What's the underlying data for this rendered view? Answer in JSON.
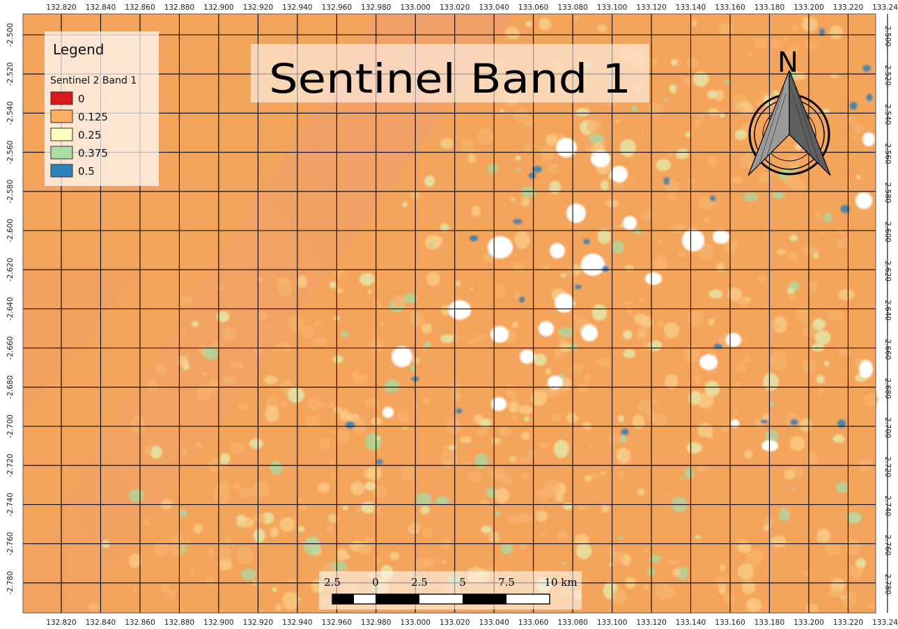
{
  "title": "Sentinel Band 1",
  "legend": {
    "heading": "Legend",
    "layer_name": "Sentinel 2 Band 1",
    "items": [
      {
        "label": "0",
        "color": "#d7191c"
      },
      {
        "label": "0.125",
        "color": "#fdae61"
      },
      {
        "label": "0.25",
        "color": "#ffffbf"
      },
      {
        "label": "0.375",
        "color": "#abdda4"
      },
      {
        "label": "0.5",
        "color": "#2b83ba"
      }
    ]
  },
  "grid": {
    "x_labels": [
      "132.820",
      "132.840",
      "132.860",
      "132.880",
      "132.900",
      "132.920",
      "132.940",
      "132.960",
      "132.980",
      "133.000",
      "133.020",
      "133.040",
      "133.060",
      "133.080",
      "133.100",
      "133.120",
      "133.140",
      "133.160",
      "133.180",
      "133.200",
      "133.220",
      "133.240"
    ],
    "y_labels": [
      "-2.500",
      "-2.520",
      "-2.540",
      "-2.560",
      "-2.580",
      "-2.600",
      "-2.620",
      "-2.640",
      "-2.660",
      "-2.680",
      "-2.700",
      "-2.720",
      "-2.740",
      "-2.760",
      "-2.780"
    ]
  },
  "north_arrow": {
    "label": "N",
    "icon": "north-arrow-icon"
  },
  "scale_bar": {
    "labels": [
      "2.5",
      "0",
      "2.5",
      "5",
      "7.5",
      "10 km"
    ]
  },
  "colors": {
    "background": "#f4a55c",
    "band": "#f1a266",
    "water": "#ffffff"
  }
}
